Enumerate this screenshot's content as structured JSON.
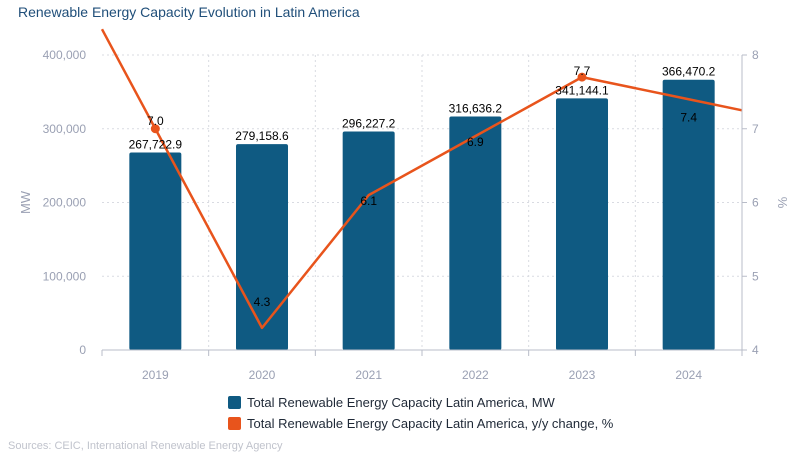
{
  "title": "Renewable Energy Capacity Evolution in Latin America",
  "source": "Sources: CEIC, International Renewable Energy Agency",
  "colors": {
    "bars": "#0f5a82",
    "line": "#e8541c",
    "grid": "#d9dbe2",
    "axis_text": "#9aa0b3"
  },
  "chart_data": {
    "type": "bar+line",
    "categories": [
      "2019",
      "2020",
      "2021",
      "2022",
      "2023",
      "2024"
    ],
    "series": [
      {
        "name": "Total Renewable Energy Capacity Latin America, MW",
        "type": "bar",
        "axis": "left",
        "values": [
          267722.9,
          279158.6,
          296227.2,
          316636.2,
          341144.1,
          366470.2
        ],
        "labels": [
          "267,722.9",
          "279,158.6",
          "296,227.2",
          "316,636.2",
          "341,144.1",
          "366,470.2"
        ]
      },
      {
        "name": "Total Renewable Energy Capacity Latin America, y/y change, %",
        "type": "line",
        "axis": "right",
        "values": [
          7.0,
          4.3,
          6.1,
          6.9,
          7.7,
          7.4
        ],
        "labels": [
          "7.0",
          "4.3",
          "6.1",
          "6.9",
          "7.7",
          "7.4"
        ]
      }
    ],
    "y_left": {
      "label": "MW",
      "range": [
        0,
        400000
      ],
      "ticks": [
        0,
        100000,
        200000,
        300000,
        400000
      ],
      "tick_labels": [
        "0",
        "100,000",
        "200,000",
        "300,000",
        "400,000"
      ]
    },
    "y_right": {
      "label": "%",
      "range": [
        4,
        8
      ],
      "ticks": [
        4,
        5,
        6,
        7,
        8
      ],
      "tick_labels": [
        "4",
        "5",
        "6",
        "7",
        "8"
      ]
    },
    "grid": true,
    "legend": "bottom"
  }
}
